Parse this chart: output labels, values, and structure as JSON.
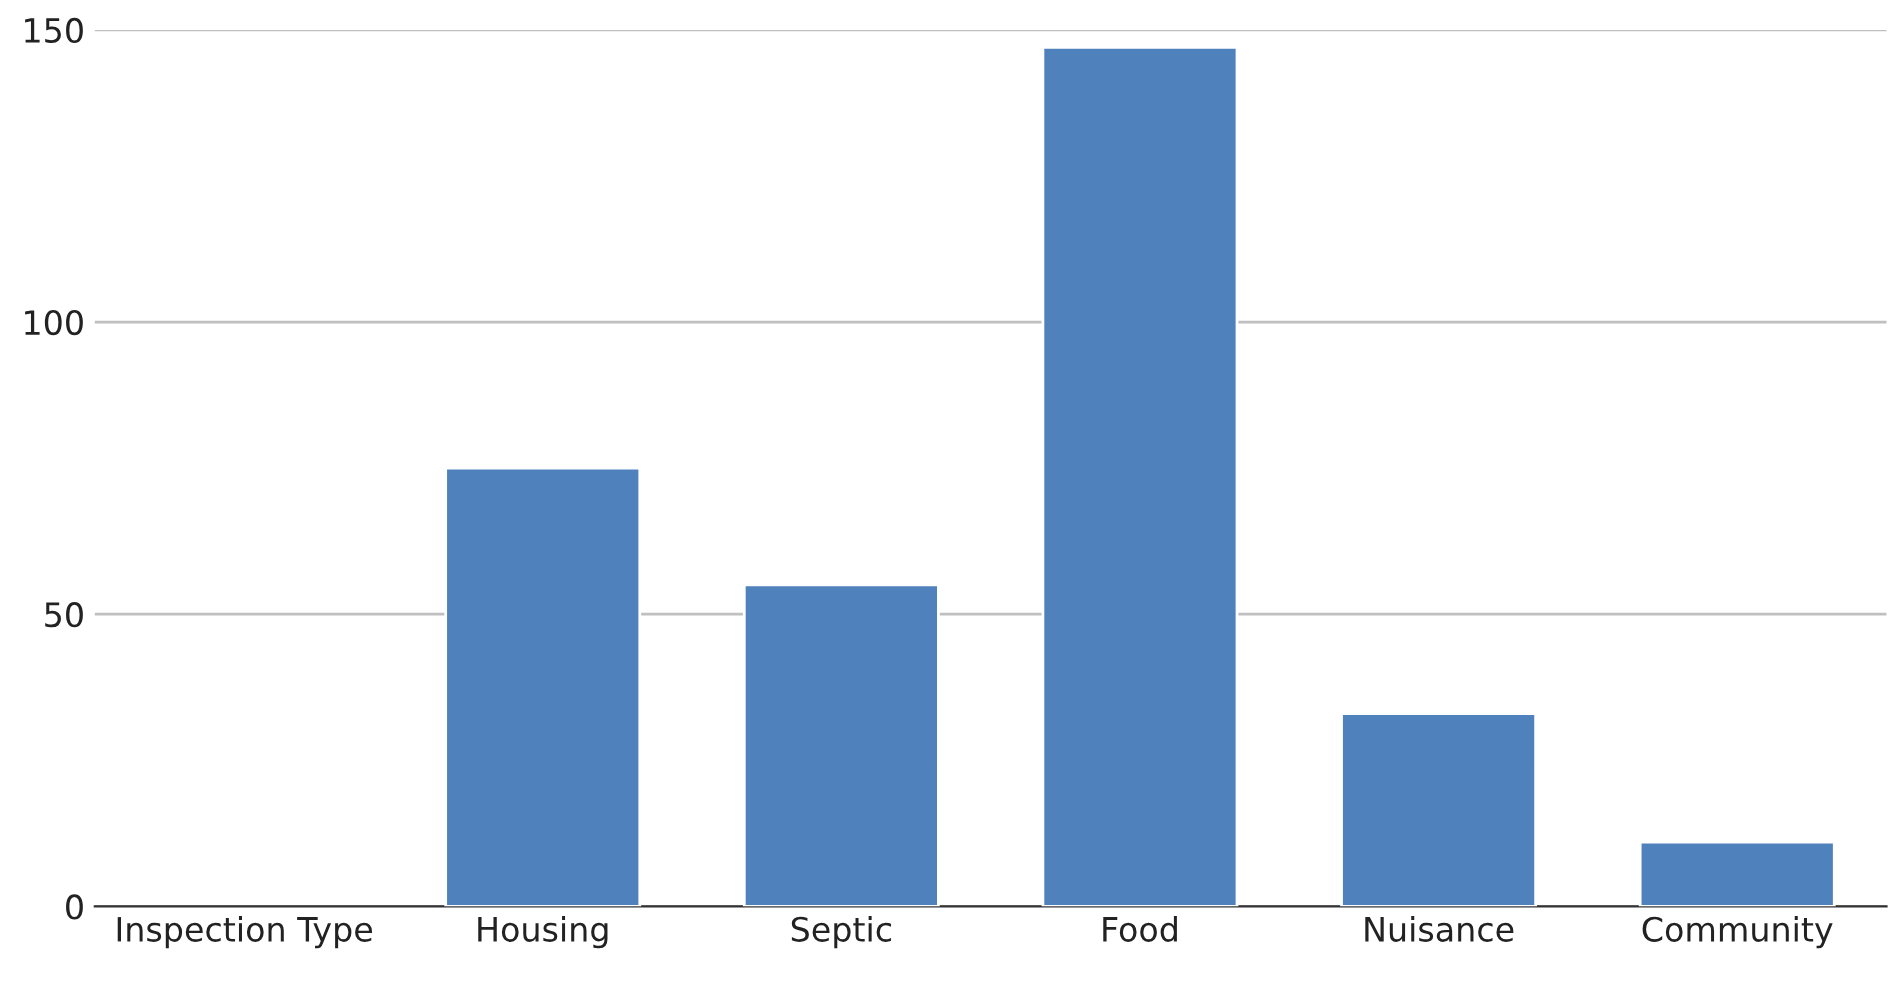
{
  "chart_data": {
    "type": "bar",
    "categories": [
      "Inspection Type",
      "Housing",
      "Septic",
      "Food",
      "Nuisance",
      "Community"
    ],
    "values": [
      null,
      75,
      55,
      147,
      33,
      11
    ],
    "color": "#4f81bd",
    "ylim": [
      0,
      150
    ],
    "yticks": [
      0,
      50,
      100,
      150
    ],
    "grid": "y"
  }
}
